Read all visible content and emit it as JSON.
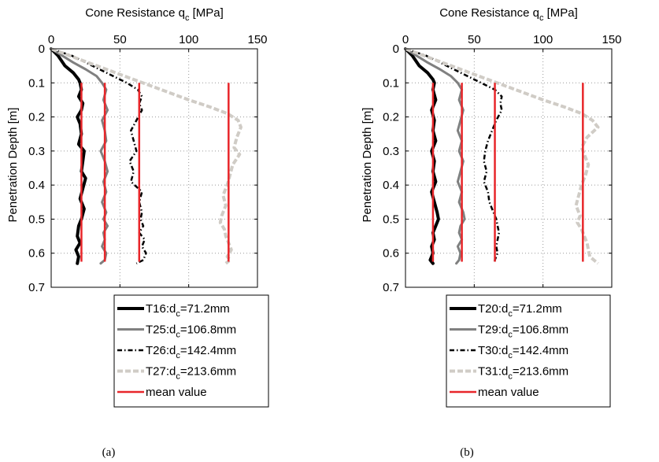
{
  "chart_data": [
    {
      "type": "line",
      "panel_caption": "(a)",
      "xlabel": "Cone Resistance q",
      "xlabel_sub": "c",
      "xlabel_unit": " [MPa]",
      "ylabel": "Penetration Depth  [m]",
      "xlim": [
        0,
        150
      ],
      "ylim": [
        0,
        0.7
      ],
      "x_axis_position": "top",
      "y_reversed": true,
      "xticks": [
        "0",
        "50",
        "100",
        "150"
      ],
      "yticks": [
        "0",
        "0.1",
        "0.2",
        "0.3",
        "0.4",
        "0.5",
        "0.6",
        "0.7"
      ],
      "grid": true,
      "legend_position": "below",
      "series": [
        {
          "name": "T16:d",
          "name_sub": "c",
          "name_rest": "=71.2mm",
          "style": "solid-thick",
          "color": "#000000",
          "x": [
            0,
            5,
            10,
            16,
            20,
            21,
            22,
            20,
            23,
            22,
            19,
            21,
            22,
            20,
            24,
            23,
            22,
            25,
            23,
            21,
            24,
            22,
            20,
            19,
            21,
            18,
            20,
            19
          ],
          "y": [
            0.0,
            0.02,
            0.05,
            0.07,
            0.09,
            0.1,
            0.12,
            0.14,
            0.16,
            0.18,
            0.2,
            0.22,
            0.25,
            0.28,
            0.3,
            0.33,
            0.36,
            0.38,
            0.41,
            0.44,
            0.47,
            0.5,
            0.52,
            0.55,
            0.57,
            0.59,
            0.61,
            0.63
          ]
        },
        {
          "name": "T25:d",
          "name_sub": "c",
          "name_rest": "=106.8mm",
          "style": "solid",
          "color": "#808080",
          "x": [
            0,
            8,
            16,
            25,
            33,
            37,
            40,
            38,
            41,
            37,
            39,
            40,
            36,
            39,
            41,
            38,
            40,
            37,
            40,
            38,
            41,
            38,
            39,
            37,
            40,
            39,
            36
          ],
          "y": [
            0.0,
            0.02,
            0.04,
            0.06,
            0.08,
            0.1,
            0.12,
            0.15,
            0.18,
            0.21,
            0.24,
            0.27,
            0.3,
            0.33,
            0.36,
            0.39,
            0.42,
            0.45,
            0.48,
            0.5,
            0.52,
            0.54,
            0.56,
            0.58,
            0.6,
            0.62,
            0.63
          ]
        },
        {
          "name": "T26:d",
          "name_sub": "c",
          "name_rest": "=142.4mm",
          "style": "dashdot",
          "color": "#000000",
          "x": [
            0,
            15,
            30,
            45,
            55,
            63,
            66,
            64,
            66,
            62,
            58,
            60,
            62,
            57,
            60,
            58,
            66,
            64,
            66,
            65,
            67,
            64,
            68,
            66,
            69,
            67,
            62
          ],
          "y": [
            0.0,
            0.02,
            0.05,
            0.08,
            0.1,
            0.12,
            0.14,
            0.16,
            0.18,
            0.21,
            0.24,
            0.27,
            0.3,
            0.33,
            0.36,
            0.39,
            0.42,
            0.45,
            0.48,
            0.5,
            0.52,
            0.54,
            0.56,
            0.58,
            0.6,
            0.62,
            0.63
          ]
        },
        {
          "name": "T27:d",
          "name_sub": "c",
          "name_rest": "=213.6mm",
          "style": "dashed",
          "color": "#d0ccc6",
          "x": [
            0,
            20,
            40,
            60,
            80,
            100,
            115,
            128,
            136,
            138,
            135,
            133,
            137,
            132,
            130,
            128,
            125,
            127,
            124,
            123,
            126,
            127,
            129,
            131,
            128,
            130,
            127
          ],
          "y": [
            0.0,
            0.03,
            0.06,
            0.09,
            0.12,
            0.15,
            0.17,
            0.19,
            0.21,
            0.23,
            0.26,
            0.29,
            0.31,
            0.34,
            0.37,
            0.4,
            0.43,
            0.46,
            0.49,
            0.51,
            0.53,
            0.55,
            0.57,
            0.59,
            0.61,
            0.62,
            0.63
          ]
        },
        {
          "name": "mean value",
          "style": "mean",
          "color": "#e8262a",
          "segments": [
            {
              "x": 22,
              "y": [
                0.1,
                0.625
              ]
            },
            {
              "x": 39,
              "y": [
                0.1,
                0.625
              ]
            },
            {
              "x": 64,
              "y": [
                0.1,
                0.625
              ]
            },
            {
              "x": 129,
              "y": [
                0.1,
                0.625
              ]
            }
          ]
        }
      ]
    },
    {
      "type": "line",
      "panel_caption": "(b)",
      "xlabel": "Cone Resistance q",
      "xlabel_sub": "c",
      "xlabel_unit": " [MPa]",
      "ylabel": "Penetration Depth  [m]",
      "xlim": [
        0,
        150
      ],
      "ylim": [
        0,
        0.7
      ],
      "x_axis_position": "top",
      "y_reversed": true,
      "xticks": [
        "0",
        "50",
        "100",
        "150"
      ],
      "yticks": [
        "0",
        "0.1",
        "0.2",
        "0.3",
        "0.4",
        "0.5",
        "0.6",
        "0.7"
      ],
      "grid": true,
      "legend_position": "below",
      "series": [
        {
          "name": "T20:d",
          "name_sub": "c",
          "name_rest": "=71.2mm",
          "style": "solid-thick",
          "color": "#000000",
          "x": [
            0,
            5,
            10,
            16,
            20,
            21,
            20,
            22,
            19,
            21,
            20,
            22,
            19,
            21,
            20,
            22,
            19,
            21,
            23,
            24,
            22,
            20,
            21,
            19,
            20,
            18,
            20
          ],
          "y": [
            0.0,
            0.02,
            0.05,
            0.07,
            0.09,
            0.1,
            0.12,
            0.15,
            0.18,
            0.21,
            0.24,
            0.27,
            0.3,
            0.33,
            0.36,
            0.39,
            0.42,
            0.45,
            0.48,
            0.5,
            0.52,
            0.54,
            0.56,
            0.58,
            0.6,
            0.62,
            0.63
          ]
        },
        {
          "name": "T29:d",
          "name_sub": "c",
          "name_rest": "=106.8mm",
          "style": "solid",
          "color": "#808080",
          "x": [
            0,
            8,
            16,
            25,
            33,
            38,
            41,
            39,
            42,
            40,
            38,
            41,
            39,
            42,
            40,
            38,
            41,
            39,
            42,
            43,
            40,
            39,
            41,
            38,
            40,
            39,
            37
          ],
          "y": [
            0.0,
            0.02,
            0.04,
            0.06,
            0.08,
            0.1,
            0.12,
            0.15,
            0.18,
            0.21,
            0.24,
            0.27,
            0.3,
            0.33,
            0.36,
            0.39,
            0.42,
            0.45,
            0.48,
            0.5,
            0.52,
            0.54,
            0.56,
            0.58,
            0.6,
            0.62,
            0.63
          ]
        },
        {
          "name": "T30:d",
          "name_sub": "c",
          "name_rest": "=142.4mm",
          "style": "dashdot",
          "color": "#000000",
          "x": [
            0,
            15,
            30,
            45,
            55,
            65,
            70,
            69,
            70,
            66,
            63,
            60,
            58,
            57,
            59,
            57,
            60,
            61,
            64,
            66,
            67,
            68,
            67,
            66,
            67,
            65,
            65
          ],
          "y": [
            0.0,
            0.02,
            0.05,
            0.08,
            0.1,
            0.12,
            0.14,
            0.16,
            0.18,
            0.21,
            0.24,
            0.27,
            0.3,
            0.33,
            0.36,
            0.39,
            0.42,
            0.45,
            0.48,
            0.5,
            0.52,
            0.54,
            0.56,
            0.58,
            0.6,
            0.62,
            0.63
          ]
        },
        {
          "name": "T31:d",
          "name_sub": "c",
          "name_rest": "=213.6mm",
          "style": "dashed",
          "color": "#d0ccc6",
          "x": [
            0,
            20,
            40,
            60,
            80,
            100,
            115,
            128,
            136,
            140,
            132,
            128,
            130,
            133,
            131,
            128,
            126,
            124,
            127,
            125,
            128,
            130,
            132,
            133,
            134,
            137,
            140
          ],
          "y": [
            0.0,
            0.03,
            0.06,
            0.09,
            0.12,
            0.15,
            0.17,
            0.19,
            0.21,
            0.23,
            0.26,
            0.29,
            0.31,
            0.34,
            0.37,
            0.4,
            0.43,
            0.46,
            0.49,
            0.51,
            0.53,
            0.55,
            0.57,
            0.59,
            0.61,
            0.62,
            0.63
          ]
        },
        {
          "name": "mean value",
          "style": "mean",
          "color": "#e8262a",
          "segments": [
            {
              "x": 20,
              "y": [
                0.1,
                0.625
              ]
            },
            {
              "x": 41,
              "y": [
                0.1,
                0.625
              ]
            },
            {
              "x": 65,
              "y": [
                0.1,
                0.625
              ]
            },
            {
              "x": 129,
              "y": [
                0.1,
                0.625
              ]
            }
          ]
        }
      ]
    }
  ]
}
